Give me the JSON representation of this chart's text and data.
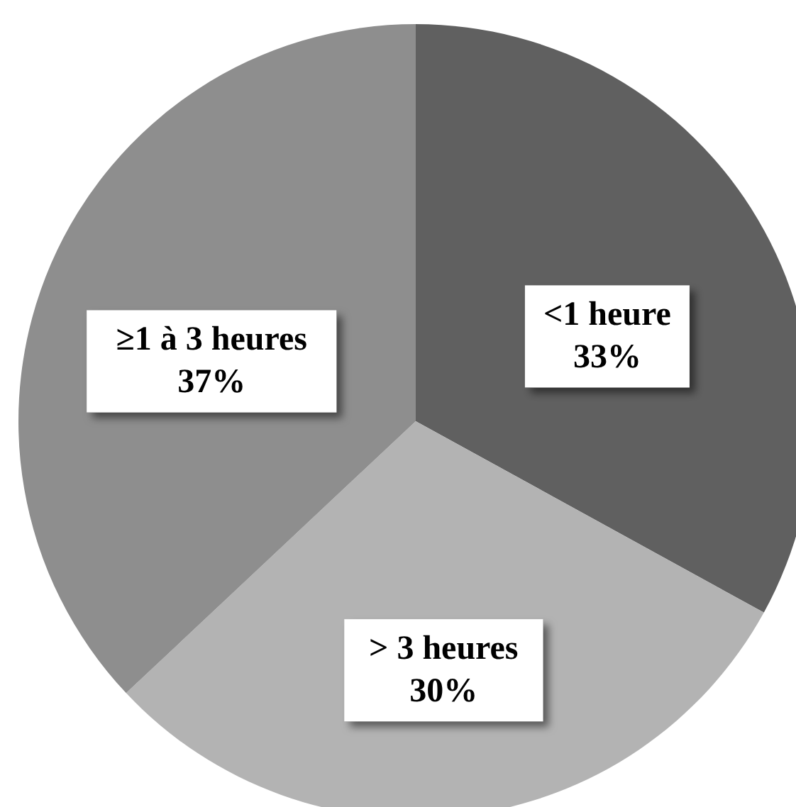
{
  "chart_data": {
    "type": "pie",
    "categories": [
      "<1 heure",
      "> 3 heures",
      "≥1 à 3 heures"
    ],
    "values": [
      33,
      30,
      37
    ],
    "colors": [
      "#606060",
      "#b3b3b3",
      "#8e8e8e"
    ],
    "value_labels": [
      "33%",
      "30%",
      "37%"
    ]
  }
}
